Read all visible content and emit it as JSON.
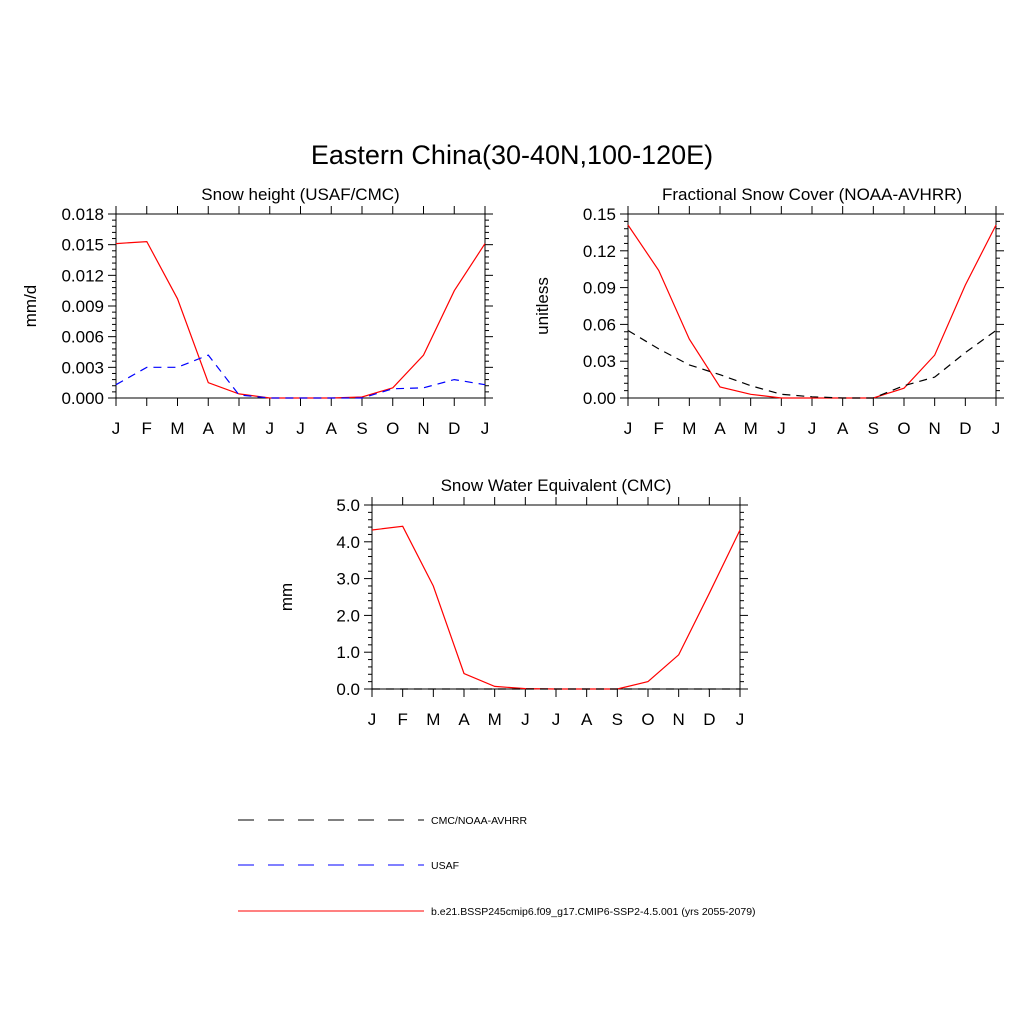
{
  "figure": {
    "title": "Eastern China(30-40N,100-120E)"
  },
  "colors": {
    "model": "#ff0000",
    "usaf": "#0000ff",
    "cmc": "#000000"
  },
  "legend": [
    {
      "label": "CMC/NOAA-AVHRR",
      "color": "#000000",
      "dash": "dashed"
    },
    {
      "label": "USAF",
      "color": "#0000ff",
      "dash": "dashed"
    },
    {
      "label": "b.e21.BSSP245cmip6.f09_g17.CMIP6-SSP2-4.5.001 (yrs 2055-2079)",
      "color": "#ff0000",
      "dash": "solid"
    }
  ],
  "chart_data": [
    {
      "type": "line",
      "title": "Snow height (USAF/CMC)",
      "xlabel": "",
      "ylabel": "mm/d",
      "categories": [
        "J",
        "F",
        "M",
        "A",
        "M",
        "J",
        "J",
        "A",
        "S",
        "O",
        "N",
        "D",
        "J"
      ],
      "ylim": [
        0,
        0.018
      ],
      "yticks": [
        "0.000",
        "0.003",
        "0.006",
        "0.009",
        "0.012",
        "0.015",
        "0.018"
      ],
      "series": [
        {
          "name": "b.e21.BSSP245cmip6.f09_g17.CMIP6-SSP2-4.5.001 (yrs 2055-2079)",
          "color": "#ff0000",
          "dash": "solid",
          "values": [
            0.0151,
            0.0153,
            0.0097,
            0.0015,
            0.0004,
            0.0,
            0.0,
            0.0,
            0.0001,
            0.001,
            0.0042,
            0.0105,
            0.0151
          ]
        },
        {
          "name": "USAF",
          "color": "#0000ff",
          "dash": "dashed",
          "values": [
            0.0013,
            0.003,
            0.003,
            0.0042,
            0.0003,
            0.0,
            0.0,
            0.0,
            0.0,
            0.0009,
            0.001,
            0.0018,
            0.0013
          ]
        }
      ]
    },
    {
      "type": "line",
      "title": "Fractional Snow Cover (NOAA-AVHRR)",
      "xlabel": "",
      "ylabel": "unitless",
      "categories": [
        "J",
        "F",
        "M",
        "A",
        "M",
        "J",
        "J",
        "A",
        "S",
        "O",
        "N",
        "D",
        "J"
      ],
      "ylim": [
        0,
        0.15
      ],
      "yticks": [
        "0.00",
        "0.03",
        "0.06",
        "0.09",
        "0.12",
        "0.15"
      ],
      "series": [
        {
          "name": "b.e21.BSSP245cmip6.f09_g17.CMIP6-SSP2-4.5.001 (yrs 2055-2079)",
          "color": "#ff0000",
          "dash": "solid",
          "values": [
            0.141,
            0.104,
            0.048,
            0.009,
            0.003,
            0.0,
            0.0,
            0.0,
            0.0,
            0.008,
            0.035,
            0.092,
            0.141
          ]
        },
        {
          "name": "CMC/NOAA-AVHRR",
          "color": "#000000",
          "dash": "dashed",
          "values": [
            0.055,
            0.04,
            0.027,
            0.019,
            0.01,
            0.003,
            0.001,
            0.0,
            0.0,
            0.01,
            0.017,
            0.037,
            0.055
          ]
        }
      ]
    },
    {
      "type": "line",
      "title": "Snow Water Equivalent (CMC)",
      "xlabel": "",
      "ylabel": "mm",
      "categories": [
        "J",
        "F",
        "M",
        "A",
        "M",
        "J",
        "J",
        "A",
        "S",
        "O",
        "N",
        "D",
        "J"
      ],
      "ylim": [
        0,
        5.0
      ],
      "yticks": [
        "0.0",
        "1.0",
        "2.0",
        "3.0",
        "4.0",
        "5.0"
      ],
      "series": [
        {
          "name": "b.e21.BSSP245cmip6.f09_g17.CMIP6-SSP2-4.5.001 (yrs 2055-2079)",
          "color": "#ff0000",
          "dash": "solid",
          "values": [
            4.32,
            4.42,
            2.8,
            0.42,
            0.07,
            0.01,
            0.0,
            0.0,
            0.0,
            0.2,
            0.93,
            2.6,
            4.32
          ]
        },
        {
          "name": "CMC/NOAA-AVHRR",
          "color": "#000000",
          "dash": "dashed",
          "values": [
            0.0,
            0.0,
            0.0,
            0.0,
            0.0,
            0.0,
            0.0,
            0.0,
            0.0,
            0.0,
            0.0,
            0.0,
            0.0
          ]
        }
      ]
    }
  ]
}
